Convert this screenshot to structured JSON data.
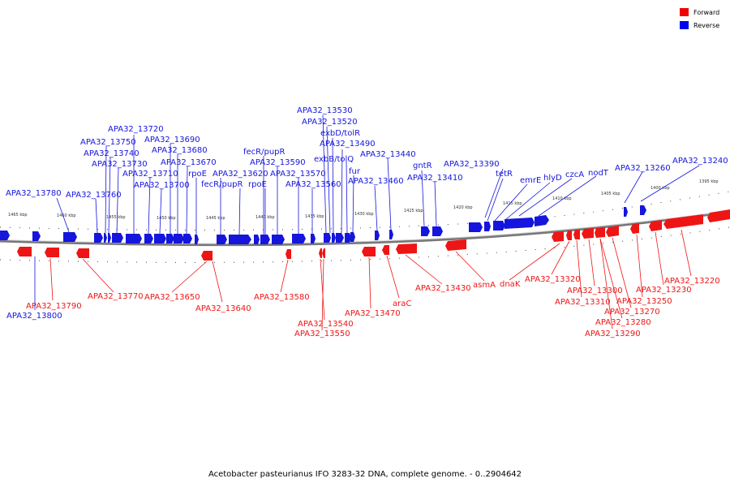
{
  "caption": "Acetobacter pasteurianus IFO 3283-32 DNA, complete genome. - 0..2904642",
  "legend": [
    {
      "label": "Forward",
      "color": "#ee0000"
    },
    {
      "label": "Reverse",
      "color": "#0000ee"
    }
  ],
  "kbp_ticks": [
    "1465 kbp",
    "1460 kbp",
    "1455 kbp",
    "1450 kbp",
    "1445 kbp",
    "1440 kbp",
    "1435 kbp",
    "1430 kbp",
    "1425 kbp",
    "1420 kbp",
    "1415 kbp",
    "1410 kbp",
    "1405 kbp",
    "1400 kbp",
    "1395 kbp"
  ],
  "reverse_labels": [
    "APA32_13780",
    "APA32_13760",
    "APA32_13750",
    "APA32_13740",
    "APA32_13730",
    "APA32_13720",
    "APA32_13710",
    "APA32_13700",
    "APA32_13690",
    "APA32_13680",
    "APA32_13670",
    "rpoE",
    "APA32_13620",
    "fecR/pupR",
    "fecR/pupR",
    "rpoE",
    "APA32_13590",
    "APA32_13570",
    "APA32_13560",
    "APA32_13530",
    "APA32_13520",
    "exbD/tolR",
    "APA32_13490",
    "exbB/tolQ",
    "fur",
    "APA32_13460",
    "APA32_13440",
    "gntR",
    "APA32_13410",
    "APA32_13390",
    "tetR",
    "emrE",
    "hlyD",
    "czcA",
    "nodT",
    "APA32_13260",
    "APA32_13240",
    "APA32_13800"
  ],
  "forward_labels": [
    "APA32_13790",
    "APA32_13770",
    "APA32_13650",
    "APA32_13640",
    "APA32_13580",
    "APA32_13540",
    "APA32_13550",
    "APA32_13470",
    "araC",
    "APA32_13430",
    "asmA",
    "dnaK",
    "APA32_13320",
    "APA32_13300",
    "APA32_13310",
    "APA32_13250",
    "APA32_13230",
    "APA32_13220",
    "APA32_13270",
    "APA32_13280",
    "APA32_13290"
  ]
}
